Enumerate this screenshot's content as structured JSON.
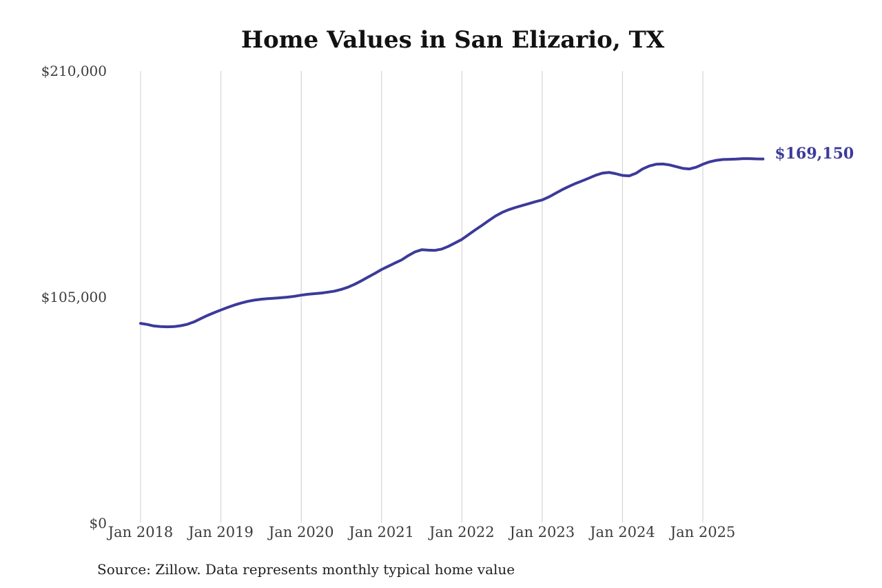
{
  "chart_data": {
    "type": "line",
    "title": "Home Values in San Elizario, TX",
    "source": "Source: Zillow. Data represents monthly typical home value",
    "end_label": "$169,150",
    "latest_value": 169150,
    "line_color": "#3c3a99",
    "grid_color": "#cccccc",
    "axis_text_color": "#3c3c3c",
    "title_color": "#121212",
    "background_color": "#ffffff",
    "legend": "none",
    "grid": "vertical-only",
    "xlabel": "",
    "ylabel": "",
    "ylim": [
      0,
      210000
    ],
    "y_ticks": [
      {
        "value": 0,
        "label": "$0"
      },
      {
        "value": 105000,
        "label": "$105,000"
      },
      {
        "value": 210000,
        "label": "$210,000"
      }
    ],
    "x_tick_labels": [
      "Jan 2018",
      "Jan 2019",
      "Jan 2020",
      "Jan 2021",
      "Jan 2022",
      "Jan 2023",
      "Jan 2024",
      "Jan 2025"
    ],
    "x_start": "Jan 2018",
    "x_end": "Oct 2025",
    "x_interval": "monthly",
    "series": [
      {
        "name": "Monthly typical home value",
        "values": [
          92800,
          92300,
          91600,
          91300,
          91200,
          91300,
          91700,
          92400,
          93500,
          95000,
          96500,
          97800,
          99000,
          100200,
          101300,
          102200,
          103000,
          103600,
          104000,
          104300,
          104500,
          104700,
          105000,
          105400,
          105900,
          106300,
          106600,
          106900,
          107300,
          107800,
          108600,
          109600,
          111000,
          112600,
          114300,
          116000,
          117800,
          119300,
          120800,
          122300,
          124300,
          126000,
          127000,
          126800,
          126700,
          127300,
          128600,
          130200,
          131800,
          134000,
          136200,
          138300,
          140500,
          142600,
          144300,
          145600,
          146600,
          147500,
          148400,
          149300,
          150100,
          151500,
          153200,
          154900,
          156400,
          157800,
          159000,
          160300,
          161600,
          162600,
          162900,
          162300,
          161500,
          161300,
          162500,
          164500,
          165900,
          166700,
          166800,
          166400,
          165600,
          164800,
          164500,
          165300,
          166700,
          167800,
          168500,
          168900,
          169000,
          169100,
          169300,
          169300,
          169200,
          169150
        ]
      }
    ]
  }
}
